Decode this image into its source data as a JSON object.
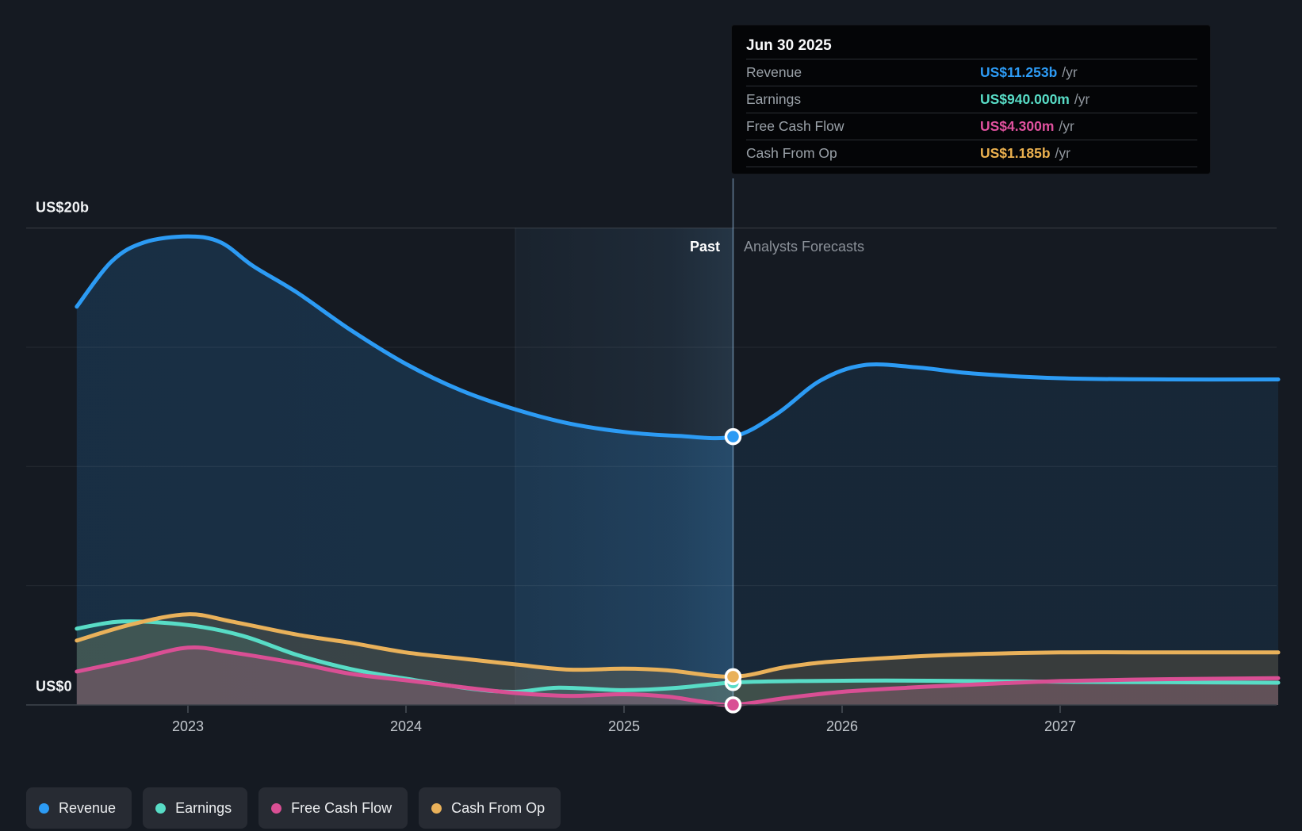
{
  "tooltip": {
    "date": "Jun 30 2025",
    "rows": [
      {
        "id": "revenue",
        "label": "Revenue",
        "value": "US$11.253b",
        "suffix": "/yr",
        "color": "#2d9bf5"
      },
      {
        "id": "earnings",
        "label": "Earnings",
        "value": "US$940.000m",
        "suffix": "/yr",
        "color": "#58dcc6"
      },
      {
        "id": "fcf",
        "label": "Free Cash Flow",
        "value": "US$4.300m",
        "suffix": "/yr",
        "color": "#e0519e"
      },
      {
        "id": "cashop",
        "label": "Cash From Op",
        "value": "US$1.185b",
        "suffix": "/yr",
        "color": "#ecb14f"
      }
    ]
  },
  "annotations": {
    "past": "Past",
    "forecast": "Analysts Forecasts"
  },
  "y_axis": {
    "top_label": "US$20b",
    "bottom_label": "US$0"
  },
  "x_axis": {
    "ticks": [
      {
        "t": 2023,
        "label": "2023"
      },
      {
        "t": 2024,
        "label": "2024"
      },
      {
        "t": 2025,
        "label": "2025"
      },
      {
        "t": 2026,
        "label": "2026"
      },
      {
        "t": 2027,
        "label": "2027"
      }
    ]
  },
  "legend": [
    {
      "id": "revenue",
      "label": "Revenue",
      "color": "#2c9bf4"
    },
    {
      "id": "earnings",
      "label": "Earnings",
      "color": "#58dcc6"
    },
    {
      "id": "fcf",
      "label": "Free Cash Flow",
      "color": "#d94f94"
    },
    {
      "id": "cashop",
      "label": "Cash From Op",
      "color": "#e9b15a"
    }
  ],
  "chart_data": {
    "type": "area",
    "title": "Revenue & Earnings past and forecast",
    "x_unit": "year",
    "x_range": [
      2022.49,
      2028.0
    ],
    "ylim_billions": [
      0,
      20
    ],
    "gridlines_billions": [
      5,
      10,
      15,
      20
    ],
    "grid": true,
    "legend_position": "bottom",
    "today_x": 2025.5,
    "today_values_billions": {
      "revenue": 11.253,
      "earnings": 0.94,
      "fcf": 0.0043,
      "cashop": 1.185
    },
    "highlight_band_x": [
      2024.5,
      2025.5
    ],
    "series": [
      {
        "id": "revenue",
        "name": "Revenue",
        "color": "#2c9bf4",
        "points": [
          [
            2022.49,
            16.7
          ],
          [
            2022.65,
            18.6
          ],
          [
            2022.8,
            19.4
          ],
          [
            2023.0,
            19.65
          ],
          [
            2023.15,
            19.4
          ],
          [
            2023.3,
            18.4
          ],
          [
            2023.5,
            17.3
          ],
          [
            2023.75,
            15.7
          ],
          [
            2024.0,
            14.3
          ],
          [
            2024.25,
            13.2
          ],
          [
            2024.5,
            12.4
          ],
          [
            2024.75,
            11.8
          ],
          [
            2025.0,
            11.45
          ],
          [
            2025.25,
            11.28
          ],
          [
            2025.5,
            11.253
          ],
          [
            2025.7,
            12.2
          ],
          [
            2025.9,
            13.6
          ],
          [
            2026.1,
            14.25
          ],
          [
            2026.35,
            14.15
          ],
          [
            2026.6,
            13.9
          ],
          [
            2027.0,
            13.7
          ],
          [
            2027.5,
            13.65
          ],
          [
            2028.0,
            13.65
          ]
        ]
      },
      {
        "id": "earnings",
        "name": "Earnings",
        "color": "#58dcc6",
        "points": [
          [
            2022.49,
            3.2
          ],
          [
            2022.7,
            3.5
          ],
          [
            2023.0,
            3.35
          ],
          [
            2023.25,
            2.9
          ],
          [
            2023.5,
            2.1
          ],
          [
            2023.75,
            1.5
          ],
          [
            2024.0,
            1.1
          ],
          [
            2024.3,
            0.68
          ],
          [
            2024.5,
            0.55
          ],
          [
            2024.7,
            0.72
          ],
          [
            2025.0,
            0.62
          ],
          [
            2025.25,
            0.72
          ],
          [
            2025.5,
            0.94
          ],
          [
            2025.8,
            1.0
          ],
          [
            2026.2,
            1.02
          ],
          [
            2026.6,
            1.0
          ],
          [
            2027.0,
            0.97
          ],
          [
            2027.5,
            0.95
          ],
          [
            2028.0,
            0.93
          ]
        ]
      },
      {
        "id": "fcf",
        "name": "Free Cash Flow",
        "color": "#d94f94",
        "points": [
          [
            2022.49,
            1.4
          ],
          [
            2022.75,
            1.9
          ],
          [
            2023.0,
            2.4
          ],
          [
            2023.2,
            2.2
          ],
          [
            2023.5,
            1.75
          ],
          [
            2023.75,
            1.3
          ],
          [
            2024.0,
            1.03
          ],
          [
            2024.25,
            0.75
          ],
          [
            2024.5,
            0.5
          ],
          [
            2024.75,
            0.38
          ],
          [
            2025.0,
            0.45
          ],
          [
            2025.2,
            0.35
          ],
          [
            2025.35,
            0.15
          ],
          [
            2025.5,
            0.0043
          ],
          [
            2025.75,
            0.3
          ],
          [
            2026.0,
            0.55
          ],
          [
            2026.3,
            0.72
          ],
          [
            2026.6,
            0.85
          ],
          [
            2027.0,
            1.0
          ],
          [
            2027.5,
            1.08
          ],
          [
            2028.0,
            1.12
          ]
        ]
      },
      {
        "id": "cashop",
        "name": "Cash From Op",
        "color": "#e9b15a",
        "points": [
          [
            2022.49,
            2.7
          ],
          [
            2022.75,
            3.4
          ],
          [
            2023.0,
            3.8
          ],
          [
            2023.2,
            3.5
          ],
          [
            2023.5,
            2.95
          ],
          [
            2023.75,
            2.6
          ],
          [
            2024.0,
            2.2
          ],
          [
            2024.25,
            1.95
          ],
          [
            2024.5,
            1.7
          ],
          [
            2024.75,
            1.48
          ],
          [
            2025.0,
            1.52
          ],
          [
            2025.2,
            1.45
          ],
          [
            2025.5,
            1.185
          ],
          [
            2025.75,
            1.6
          ],
          [
            2026.0,
            1.85
          ],
          [
            2026.5,
            2.1
          ],
          [
            2027.0,
            2.2
          ],
          [
            2027.5,
            2.2
          ],
          [
            2028.0,
            2.2
          ]
        ]
      }
    ]
  },
  "colors": {
    "background": "#151a22",
    "band_edge": "#9ecbf0",
    "gridline": "#2a3039",
    "axis_line": "#3f444c",
    "tick": "#4a4f57"
  }
}
